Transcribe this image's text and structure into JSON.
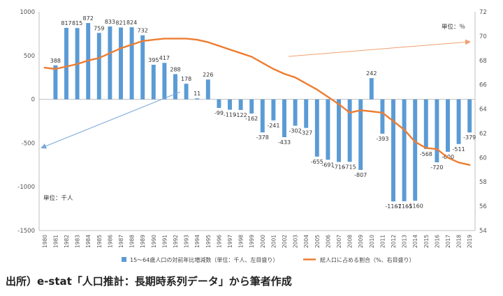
{
  "chart_data": {
    "type": "bar+line",
    "categories": [
      "1980",
      "1981",
      "1982",
      "1983",
      "1984",
      "1985",
      "1986",
      "1987",
      "1988",
      "1989",
      "1990",
      "1991",
      "1992",
      "1993",
      "1994",
      "1995",
      "1996",
      "1997",
      "1998",
      "1999",
      "2000",
      "2001",
      "2002",
      "2003",
      "2004",
      "2005",
      "2006",
      "2007",
      "2008",
      "2009",
      "2010",
      "2011",
      "2012",
      "2013",
      "2014",
      "2015",
      "2016",
      "2017",
      "2018",
      "2019"
    ],
    "series": [
      {
        "name": "15～64歳人口の対前年比増減数（単位：千人、左目盛り）",
        "type": "bar",
        "axis": "left",
        "color": "#5b9bd5",
        "values": [
          null,
          388,
          817,
          815,
          872,
          759,
          833,
          821,
          824,
          732,
          395,
          417,
          288,
          178,
          11,
          226,
          -99,
          -119,
          -122,
          -162,
          -378,
          -241,
          -433,
          -302,
          -327,
          -655,
          -691,
          -716,
          -715,
          -807,
          242,
          -393,
          -1167,
          -1165,
          -1160,
          -568,
          -720,
          -600,
          -511,
          -379
        ],
        "labels": [
          "",
          "388",
          "817",
          "815",
          "872",
          "759",
          "833",
          "821",
          "824",
          "732",
          "395",
          "417",
          "288",
          "178",
          "11",
          "226",
          "-99",
          "-119",
          "-122",
          "-162",
          "-378",
          "-241",
          "-433",
          "-302",
          "-327",
          "-655",
          "-691",
          "-716",
          "-715",
          "-807",
          "242",
          "-393",
          "-1167",
          "-1165",
          "-1160",
          "-568",
          "-720",
          "-600",
          "-511",
          "-379"
        ]
      },
      {
        "name": "総人口に占める割合（%、右目盛り）",
        "type": "line",
        "axis": "right",
        "color": "#ed7d31",
        "values": [
          67.4,
          67.3,
          67.5,
          67.7,
          68.0,
          68.2,
          68.6,
          69.0,
          69.3,
          69.6,
          69.7,
          69.8,
          69.8,
          69.8,
          69.7,
          69.5,
          69.2,
          68.9,
          68.6,
          68.3,
          67.8,
          67.3,
          66.9,
          66.6,
          66.1,
          65.6,
          65.0,
          64.4,
          63.7,
          63.9,
          63.8,
          63.7,
          63.0,
          62.3,
          61.3,
          60.8,
          60.7,
          60.0,
          59.6,
          59.4
        ]
      }
    ],
    "y_left": {
      "ticks": [
        1000,
        500,
        0,
        -500,
        -1000,
        -1500
      ],
      "range": [
        -1500,
        1000
      ]
    },
    "y_right": {
      "ticks": [
        72,
        70,
        68,
        66,
        64,
        62,
        60,
        58,
        56,
        54
      ],
      "range": [
        54,
        72
      ]
    },
    "unit_left": "単位：千人",
    "unit_right": "単位：％",
    "legend_placement": "bottom",
    "grid": false
  },
  "caption": "出所）e-stat「人口推計：長期時系列データ」から筆者作成"
}
